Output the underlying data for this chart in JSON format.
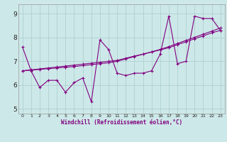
{
  "xlabel": "Windchill (Refroidissement éolien,°C)",
  "xlim": [
    -0.5,
    23.5
  ],
  "ylim": [
    4.8,
    9.4
  ],
  "yticks": [
    5,
    6,
    7,
    8,
    9
  ],
  "xticks": [
    0,
    1,
    2,
    3,
    4,
    5,
    6,
    7,
    8,
    9,
    10,
    11,
    12,
    13,
    14,
    15,
    16,
    17,
    18,
    19,
    20,
    21,
    22,
    23
  ],
  "bg_color": "#cde8e8",
  "line_color": "#800080",
  "grid_color": "#a8cccc",
  "line1": [
    7.6,
    6.6,
    5.9,
    6.2,
    6.2,
    5.7,
    6.1,
    6.3,
    5.3,
    7.9,
    7.5,
    6.5,
    6.4,
    6.5,
    6.5,
    6.6,
    7.3,
    8.9,
    6.9,
    7.0,
    8.9,
    8.8,
    8.8,
    8.3
  ],
  "line2": [
    6.6,
    6.64,
    6.68,
    6.72,
    6.76,
    6.8,
    6.84,
    6.88,
    6.92,
    6.96,
    7.0,
    7.04,
    7.13,
    7.22,
    7.3,
    7.39,
    7.48,
    7.57,
    7.7,
    7.82,
    7.95,
    8.07,
    8.2,
    8.3
  ],
  "line3": [
    6.6,
    6.63,
    6.66,
    6.69,
    6.72,
    6.75,
    6.78,
    6.82,
    6.86,
    6.9,
    6.94,
    7.0,
    7.1,
    7.2,
    7.3,
    7.4,
    7.5,
    7.62,
    7.75,
    7.88,
    8.01,
    8.14,
    8.27,
    8.4
  ]
}
